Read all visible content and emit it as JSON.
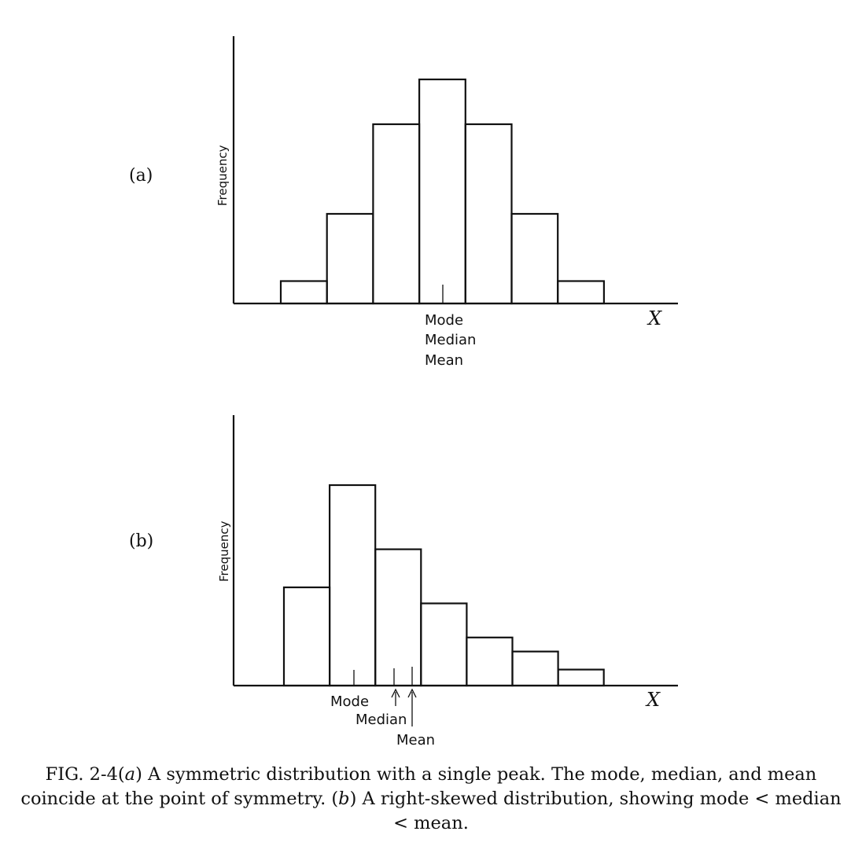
{
  "chart_data": [
    {
      "type": "bar",
      "panel": "(a)",
      "ylabel": "Frequency",
      "xlabel": "X",
      "values": [
        1,
        4,
        8,
        10,
        8,
        4,
        1
      ],
      "ylim": [
        0,
        10
      ],
      "markers": [
        {
          "position": 4,
          "labels": [
            "Mode",
            "Median",
            "Mean"
          ]
        }
      ]
    },
    {
      "type": "bar",
      "panel": "(b)",
      "ylabel": "Frequency",
      "xlabel": "X",
      "values": [
        4.9,
        10,
        6.8,
        4.1,
        2.4,
        1.7,
        0.8
      ],
      "ylim": [
        0,
        10
      ],
      "markers": [
        {
          "name": "Mode",
          "position": 1.5
        },
        {
          "name": "Median",
          "position": 2.35
        },
        {
          "name": "Mean",
          "position": 2.75
        }
      ]
    }
  ],
  "caption": {
    "prefix": "FIG. 2-4(",
    "label_a": "a",
    "part1": ")   A symmetric distribution with a single peak. The mode, median, and mean coincide at the point of symmetry. (",
    "label_b": "b",
    "part2": ") A right-skewed distribution, showing mode < median < mean."
  }
}
